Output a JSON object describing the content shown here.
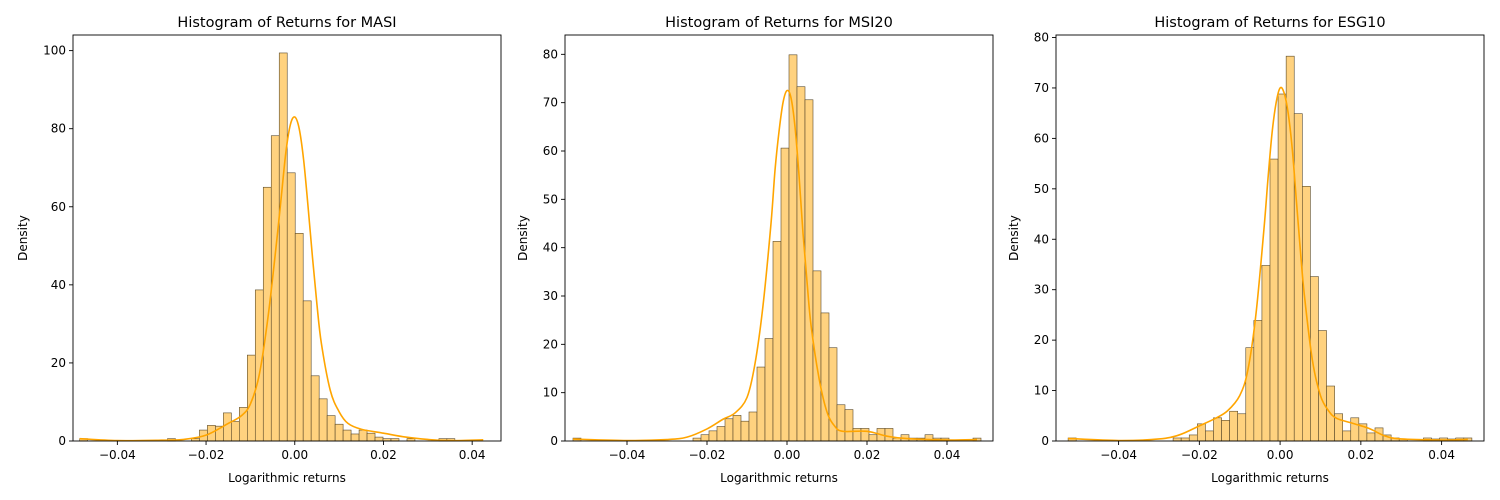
{
  "chart_data": [
    {
      "type": "bar",
      "title": "Histogram of Returns for MASI",
      "xlabel": "Logarithmic returns",
      "ylabel": "Density",
      "xlim": [
        -0.05,
        0.0465
      ],
      "ylim": [
        0,
        104
      ],
      "xticks": [
        -0.04,
        -0.02,
        0.0,
        0.02,
        0.04
      ],
      "xtick_labels": [
        "−0.04",
        "−0.02",
        "0.00",
        "0.02",
        "0.04"
      ],
      "yticks": [
        0,
        20,
        40,
        60,
        80,
        100
      ],
      "ytick_labels": [
        "0",
        "20",
        "40",
        "60",
        "80",
        "100"
      ],
      "grid": false,
      "bar_color": "#ffd27f",
      "edge_color": "#5a4a2a",
      "kde_color": "#ffa500",
      "bins": {
        "start": -0.0485,
        "width": 0.0018,
        "values": [
          0.6,
          0,
          0,
          0,
          0,
          0,
          0,
          0,
          0,
          0,
          0,
          0.6,
          0,
          0,
          0.6,
          2.8,
          4.0,
          3.8,
          7.2,
          5.0,
          8.6,
          22.0,
          38.7,
          65.0,
          78.2,
          99.4,
          68.7,
          53.2,
          35.9,
          16.7,
          10.8,
          6.5,
          4.3,
          2.8,
          1.8,
          2.8,
          2.0,
          1.0,
          0.6,
          0.6,
          0,
          0.6,
          0,
          0,
          0,
          0.6,
          0.6
        ]
      },
      "kde": {
        "x": [
          -0.0485,
          -0.04,
          -0.03,
          -0.025,
          -0.02,
          -0.015,
          -0.012,
          -0.01,
          -0.008,
          -0.006,
          -0.004,
          -0.003,
          -0.002,
          -0.001,
          0.0,
          0.001,
          0.002,
          0.003,
          0.004,
          0.005,
          0.006,
          0.008,
          0.01,
          0.012,
          0.015,
          0.02,
          0.025,
          0.03,
          0.035,
          0.0425
        ],
        "y": [
          0.6,
          0.1,
          0.2,
          0.4,
          1.5,
          4.5,
          6.5,
          9.5,
          17,
          32,
          52,
          63,
          74,
          81,
          83,
          80,
          72,
          60,
          47,
          35,
          25,
          13,
          7.5,
          4.5,
          3,
          2,
          1,
          0.4,
          0.1,
          0.3
        ]
      }
    },
    {
      "type": "bar",
      "title": "Histogram of Returns for MSI20",
      "xlabel": "Logarithmic returns",
      "ylabel": "Density",
      "xlim": [
        -0.0555,
        0.0515
      ],
      "ylim": [
        0,
        84
      ],
      "xticks": [
        -0.04,
        -0.02,
        0.0,
        0.02,
        0.04
      ],
      "xtick_labels": [
        "−0.04",
        "−0.02",
        "0.00",
        "0.02",
        "0.04"
      ],
      "yticks": [
        0,
        10,
        20,
        30,
        40,
        50,
        60,
        70,
        80
      ],
      "ytick_labels": [
        "0",
        "10",
        "20",
        "30",
        "40",
        "50",
        "60",
        "70",
        "80"
      ],
      "grid": false,
      "bar_color": "#ffd27f",
      "edge_color": "#5a4a2a",
      "kde_color": "#ffa500",
      "bins": {
        "start": -0.0535,
        "width": 0.002,
        "values": [
          0.6,
          0,
          0,
          0,
          0,
          0,
          0,
          0,
          0,
          0,
          0,
          0,
          0,
          0,
          0,
          0.6,
          1.3,
          2.1,
          3.0,
          4.6,
          5.3,
          4.1,
          6.0,
          15.3,
          21.2,
          41.3,
          60.6,
          79.9,
          73.3,
          70.6,
          35.2,
          26.5,
          19.3,
          7.5,
          6.5,
          2.6,
          2.6,
          1.3,
          2.6,
          2.6,
          0.6,
          1.3,
          0.6,
          0.6,
          1.3,
          0.6,
          0.6,
          0,
          0,
          0,
          0.6
        ]
      },
      "kde": {
        "x": [
          -0.0535,
          -0.04,
          -0.03,
          -0.025,
          -0.02,
          -0.016,
          -0.013,
          -0.01,
          -0.008,
          -0.006,
          -0.004,
          -0.003,
          -0.002,
          -0.001,
          0.0,
          0.001,
          0.002,
          0.003,
          0.004,
          0.005,
          0.006,
          0.008,
          0.01,
          0.012,
          0.014,
          0.02,
          0.025,
          0.03,
          0.04,
          0.0475
        ],
        "y": [
          0.4,
          0.1,
          0.3,
          0.8,
          2.5,
          4.5,
          5.8,
          9,
          16,
          28,
          45,
          56,
          64,
          70,
          72.5,
          71,
          65,
          55,
          43,
          33,
          24,
          13,
          6,
          3,
          2,
          2,
          1,
          0.5,
          0.2,
          0.3
        ]
      }
    },
    {
      "type": "bar",
      "title": "Histogram of Returns for ESG10",
      "xlabel": "Logarithmic returns",
      "ylabel": "Density",
      "xlim": [
        -0.0555,
        0.0505
      ],
      "ylim": [
        0,
        80.5
      ],
      "xticks": [
        -0.04,
        -0.02,
        0.0,
        0.02,
        0.04
      ],
      "xtick_labels": [
        "−0.04",
        "−0.02",
        "0.00",
        "0.02",
        "0.04"
      ],
      "yticks": [
        0,
        10,
        20,
        30,
        40,
        50,
        60,
        70,
        80
      ],
      "ytick_labels": [
        "0",
        "10",
        "20",
        "30",
        "40",
        "50",
        "60",
        "70",
        "80"
      ],
      "grid": false,
      "bar_color": "#ffd27f",
      "edge_color": "#5a4a2a",
      "kde_color": "#ffa500",
      "bins": {
        "start": -0.0525,
        "width": 0.002,
        "values": [
          0.6,
          0,
          0,
          0,
          0,
          0,
          0,
          0,
          0,
          0,
          0,
          0,
          0,
          0.6,
          0.6,
          1.2,
          3.4,
          2.0,
          4.6,
          4.1,
          5.9,
          5.4,
          18.5,
          23.9,
          34.8,
          55.9,
          68.8,
          76.3,
          64.9,
          50.5,
          32.6,
          21.9,
          10.9,
          5.4,
          2.0,
          4.6,
          3.4,
          1.6,
          2.6,
          1.2,
          0.6,
          0.4,
          0,
          0,
          0.6,
          0.4,
          0.6,
          0.4,
          0.6,
          0.6
        ]
      },
      "kde": {
        "x": [
          -0.0525,
          -0.04,
          -0.03,
          -0.025,
          -0.02,
          -0.016,
          -0.013,
          -0.01,
          -0.008,
          -0.006,
          -0.004,
          -0.003,
          -0.002,
          -0.001,
          0.0,
          0.001,
          0.002,
          0.003,
          0.004,
          0.005,
          0.006,
          0.008,
          0.01,
          0.012,
          0.014,
          0.018,
          0.022,
          0.026,
          0.03,
          0.04,
          0.0465
        ],
        "y": [
          0.5,
          0.1,
          0.4,
          1.2,
          3,
          4.5,
          6,
          9,
          14,
          25,
          42,
          52,
          61,
          67,
          70,
          69,
          65,
          58,
          48,
          38,
          29,
          16,
          9,
          6,
          4.5,
          3.5,
          2.5,
          1,
          0.4,
          0.2,
          0.3
        ]
      }
    }
  ]
}
